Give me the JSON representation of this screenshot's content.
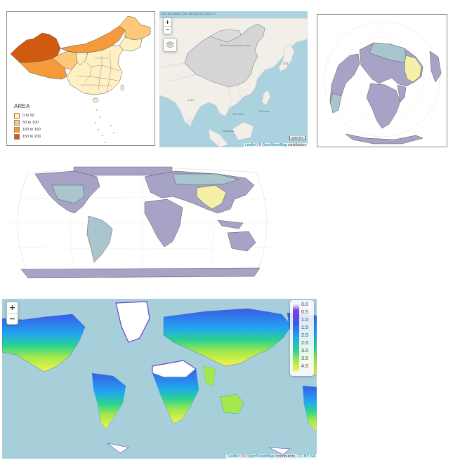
{
  "china_map": {
    "legend_title": "AREA",
    "legend_items": [
      {
        "label": "0 to 50",
        "color": "#fef0c3"
      },
      {
        "label": "50 to 100",
        "color": "#fdc877"
      },
      {
        "label": "100 to 150",
        "color": "#f49a3a"
      },
      {
        "label": "150 to 200",
        "color": "#cf5a10"
      }
    ]
  },
  "leaflet_china": {
    "coords": "lon: 85.13281 | lat: 48.01071 | zoom: 3",
    "scale_label": "1000 km",
    "place_labels": [
      "Монгол улс Монгол Улс",
      "India",
      "日本",
      "Việt Nam",
      "Pilipinas",
      "Malaysia"
    ],
    "attribution_leaflet": "Leaflet",
    "attribution_sep": " | © ",
    "attribution_osm": "OpenStreetMap",
    "attribution_suffix": " contributors"
  },
  "raster_map": {
    "attribution_leaflet": "Leaflet",
    "attribution_sep": " | © ",
    "attribution_osm": "OpenStreetMap",
    "attribution_suffix": " contributors, ",
    "attribution_license": "CC-BY-SA",
    "legend_ticks": [
      "0.0",
      "0.5",
      "1.0",
      "1.5",
      "2.0",
      "2.5",
      "3.0",
      "3.5",
      "4.0"
    ],
    "legend_colors": [
      "#ffffff",
      "#7b3fd8",
      "#3a5be8",
      "#21a7ee",
      "#2bd38e",
      "#a6e84a",
      "#f4f447"
    ]
  },
  "zoom_in": "+",
  "zoom_out": "−",
  "colors": {
    "ocean_leaflet": "#aad3df",
    "land_leaflet": "#f2efe9",
    "highlight": "#d5d5d5",
    "proj_land": "#a6a3c7",
    "proj_highlight": "#f5efa8",
    "proj_teal": "#a9c6cf",
    "raster_ocean": "#a7cfd9"
  }
}
